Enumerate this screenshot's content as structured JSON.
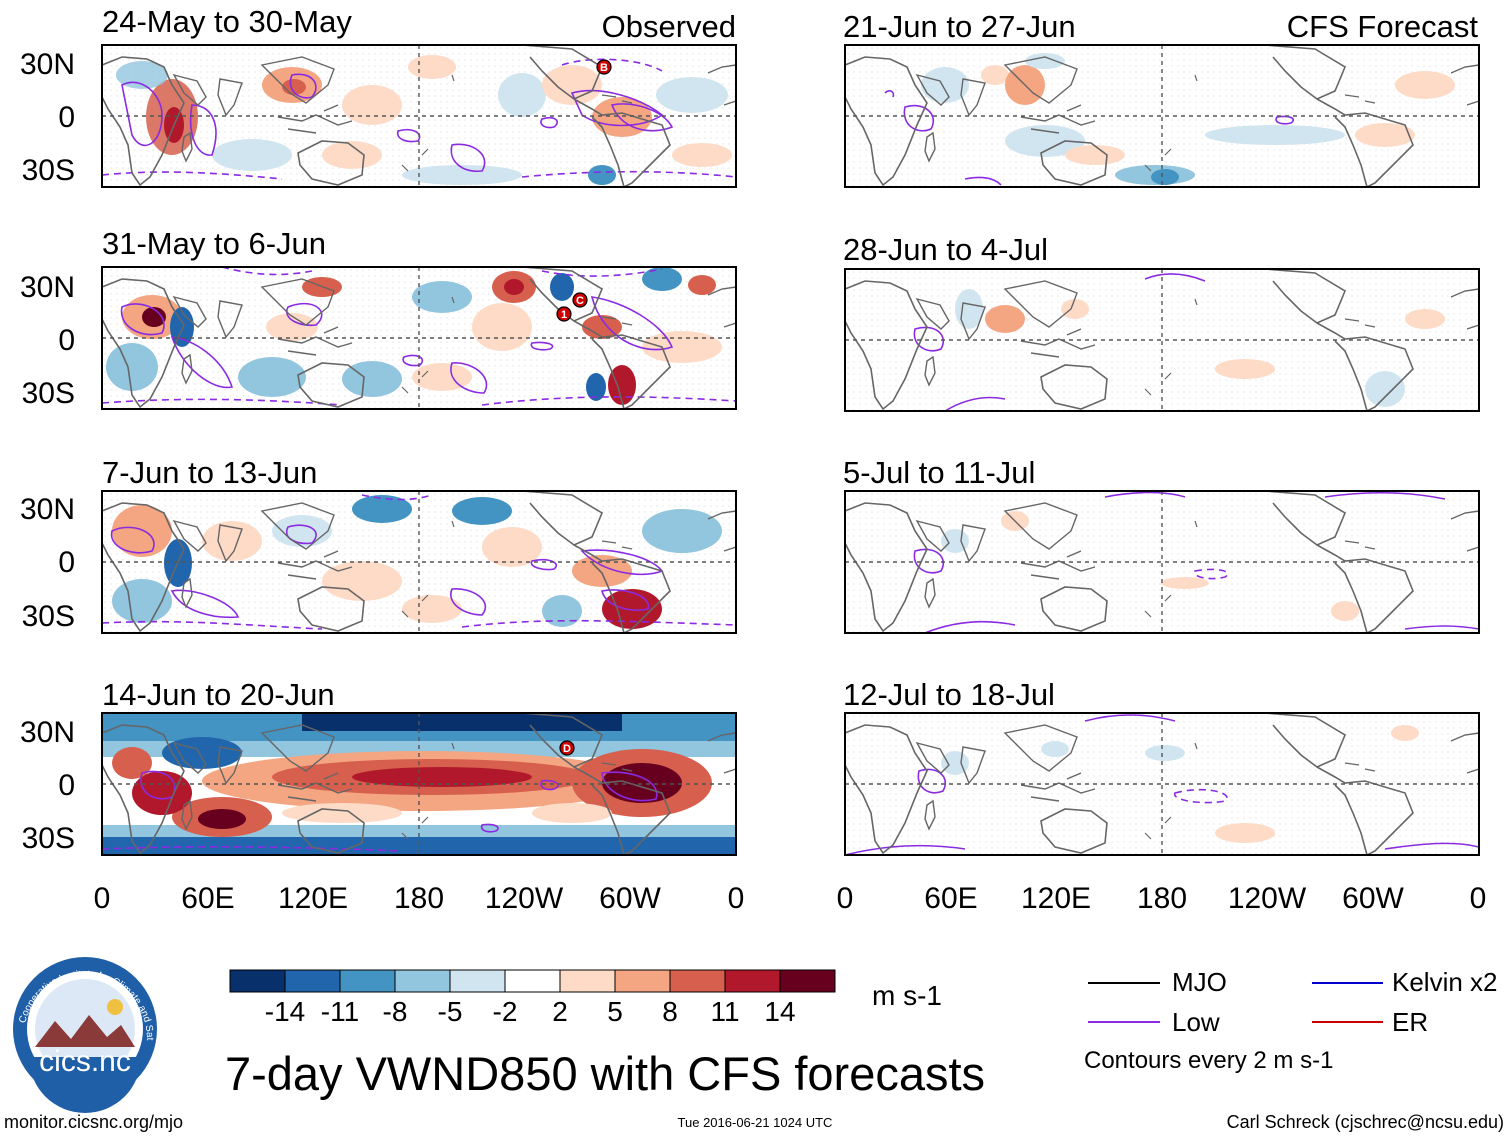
{
  "header": {
    "observed_label": "Observed",
    "forecast_label": "CFS Forecast"
  },
  "panels_observed": [
    {
      "title": "24-May to 30-May",
      "markers": [
        "B"
      ]
    },
    {
      "title": "31-May to 6-Jun",
      "markers": [
        "1",
        "C"
      ]
    },
    {
      "title": "7-Jun to 13-Jun",
      "markers": []
    },
    {
      "title": "14-Jun to 20-Jun",
      "markers": [
        "D"
      ]
    }
  ],
  "panels_forecast": [
    {
      "title": "21-Jun to 27-Jun"
    },
    {
      "title": "28-Jun to 4-Jul"
    },
    {
      "title": "5-Jul to 11-Jul"
    },
    {
      "title": "12-Jul to 18-Jul"
    }
  ],
  "axes": {
    "lat_labels": [
      "30N",
      "0",
      "30S"
    ],
    "lon_labels": [
      "0",
      "60E",
      "120E",
      "180",
      "120W",
      "60W",
      "0"
    ]
  },
  "colorbar": {
    "colors": [
      "#08306b",
      "#2166ac",
      "#4393c3",
      "#92c5de",
      "#d1e5f0",
      "#ffffff",
      "#fddbc7",
      "#f4a582",
      "#d6604d",
      "#b2182b",
      "#67001f"
    ],
    "tick_labels": [
      "-14",
      "-11",
      "-8",
      "-5",
      "-2",
      "2",
      "5",
      "8",
      "11",
      "14"
    ],
    "units": "m s-1"
  },
  "legend": {
    "items": [
      {
        "label": "MJO",
        "color": "#000000"
      },
      {
        "label": "Kelvin x2",
        "color": "#0000cc"
      },
      {
        "label": "Low",
        "color": "#8a2be2"
      },
      {
        "label": "ER",
        "color": "#cc0000"
      }
    ],
    "note": "Contours every 2 m s-1"
  },
  "footer": {
    "main_title": "7-day VWND850 with CFS forecasts",
    "url": "monitor.cicsnc.org/mjo",
    "timestamp": "Tue 2016-06-21 1024 UTC",
    "credit": "Carl Schreck (cjschrec@ncsu.edu)"
  },
  "logo": {
    "arc_text": "Cooperative Institute for Climate and Satellites",
    "name": "cics.nc"
  }
}
